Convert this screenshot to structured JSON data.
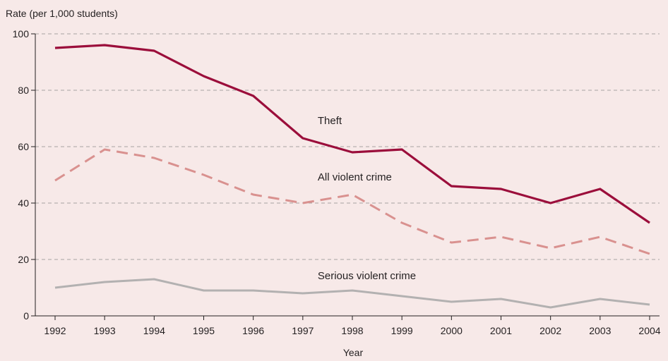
{
  "chart_data": {
    "type": "line",
    "ylabel": "Rate (per 1,000 students)",
    "xlabel": "Year",
    "ylim": [
      0,
      100
    ],
    "yticks": [
      0,
      20,
      40,
      60,
      80,
      100
    ],
    "grid": "horizontal dashed",
    "categories": [
      "1992",
      "1993",
      "1994",
      "1995",
      "1996",
      "1997",
      "1998",
      "1999",
      "2000",
      "2001",
      "2002",
      "2003",
      "2004"
    ],
    "series": [
      {
        "name": "Theft",
        "color": "#9b0e3b",
        "style": "solid",
        "values": [
          95,
          96,
          94,
          85,
          78,
          63,
          58,
          59,
          46,
          45,
          40,
          45,
          33
        ]
      },
      {
        "name": "All violent crime",
        "color": "#d9918f",
        "style": "dashed",
        "values": [
          48,
          59,
          56,
          50,
          43,
          40,
          43,
          33,
          26,
          28,
          24,
          28,
          22
        ]
      },
      {
        "name": "Serious violent crime",
        "color": "#b3b1b1",
        "style": "solid",
        "values": [
          10,
          12,
          13,
          9,
          9,
          8,
          9,
          7,
          5,
          6,
          3,
          6,
          4
        ]
      }
    ]
  }
}
